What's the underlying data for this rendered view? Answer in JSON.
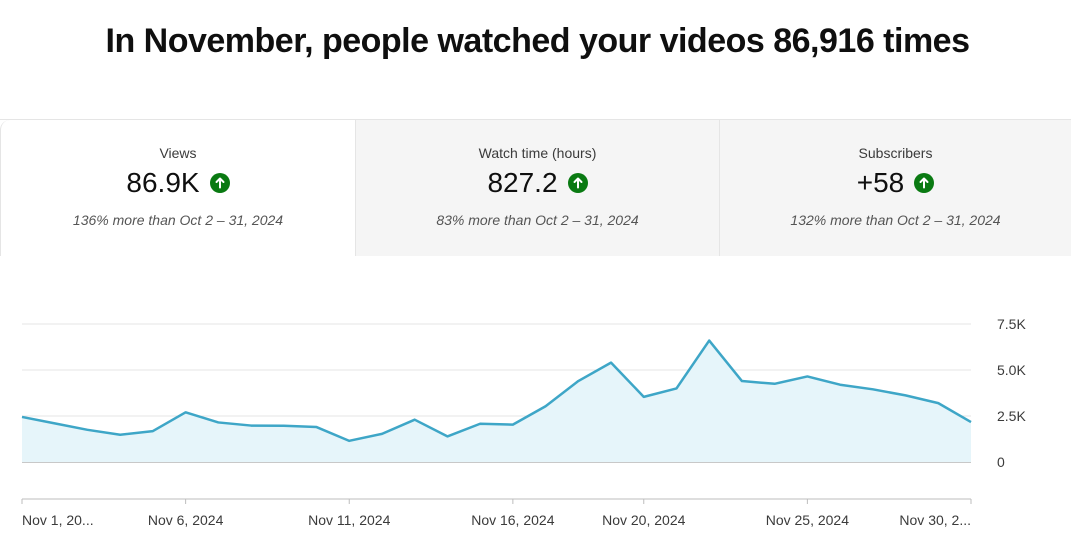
{
  "headline": "In November, people watched your videos 86,916 times",
  "metrics": [
    {
      "label": "Views",
      "value": "86.9K",
      "comparison": "136% more than Oct 2 – 31, 2024",
      "trend_icon": "arrow-up-icon",
      "trend_color": "#0a7a12"
    },
    {
      "label": "Watch time (hours)",
      "value": "827.2",
      "comparison": "83% more than Oct 2 – 31, 2024",
      "trend_icon": "arrow-up-icon",
      "trend_color": "#0a7a12"
    },
    {
      "label": "Subscribers",
      "value": "+58",
      "comparison": "132% more than Oct 2 – 31, 2024",
      "trend_icon": "arrow-up-icon",
      "trend_color": "#0a7a12"
    }
  ],
  "colors": {
    "line": "#3ea6c7",
    "area": "#e6f5fa",
    "up": "#0a7a12"
  },
  "chart_data": {
    "type": "area",
    "x": [
      "Nov 1",
      "Nov 2",
      "Nov 3",
      "Nov 4",
      "Nov 5",
      "Nov 6",
      "Nov 7",
      "Nov 8",
      "Nov 9",
      "Nov 10",
      "Nov 11",
      "Nov 12",
      "Nov 13",
      "Nov 14",
      "Nov 15",
      "Nov 16",
      "Nov 17",
      "Nov 18",
      "Nov 19",
      "Nov 20",
      "Nov 21",
      "Nov 22",
      "Nov 23",
      "Nov 24",
      "Nov 25",
      "Nov 26",
      "Nov 27",
      "Nov 28",
      "Nov 29",
      "Nov 30"
    ],
    "values": [
      2450,
      2100,
      1750,
      1480,
      1680,
      2700,
      2150,
      1980,
      1970,
      1900,
      1150,
      1530,
      2300,
      1390,
      2080,
      2030,
      3030,
      4400,
      5400,
      3540,
      4000,
      6600,
      4400,
      4250,
      4650,
      4200,
      3950,
      3620,
      3200,
      2170
    ],
    "x_tick_labels": [
      "Nov 1, 20...",
      "Nov 6, 2024",
      "Nov 11, 2024",
      "Nov 16, 2024",
      "Nov 20, 2024",
      "Nov 25, 2024",
      "Nov 30, 2..."
    ],
    "x_tick_indices": [
      0,
      5,
      10,
      15,
      19,
      24,
      29
    ],
    "y_ticks": [
      0,
      2500,
      5000,
      7500
    ],
    "y_tick_labels": [
      "0",
      "2.5K",
      "5.0K",
      "7.5K"
    ],
    "ylim": [
      0,
      7500
    ],
    "grid": true,
    "y_axis_side": "right"
  }
}
